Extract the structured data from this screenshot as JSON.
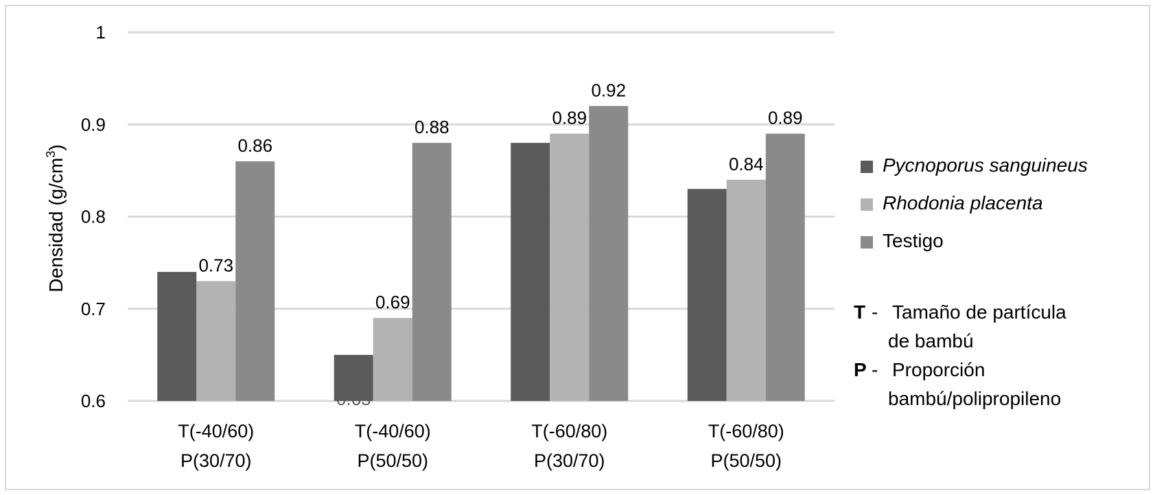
{
  "chart_data": {
    "type": "bar",
    "categories": [
      [
        "T(-40/60)",
        "P(30/70)"
      ],
      [
        "T(-40/60)",
        "P(50/50)"
      ],
      [
        "T(-60/80)",
        "P(30/70)"
      ],
      [
        "T(-60/80)",
        "P(50/50)"
      ]
    ],
    "series": [
      {
        "name": "Pycnoporus sanguineus",
        "values": [
          0.74,
          0.65,
          0.88,
          0.83
        ],
        "color": "#5b5b5b",
        "label_color": "#5b5b5b",
        "label_position": "inside"
      },
      {
        "name": "Rhodonia placenta",
        "values": [
          0.73,
          0.69,
          0.89,
          0.84
        ],
        "color": "#b3b3b3",
        "label_color": "#000000",
        "label_position": "above"
      },
      {
        "name": "Testigo",
        "values": [
          0.86,
          0.88,
          0.92,
          0.89
        ],
        "color": "#8a8a8a",
        "label_color": "#000000",
        "label_position": "above"
      }
    ],
    "ylabel": "Densidad (g/cm",
    "ylabel_sup": "3",
    "ylabel_end": ")",
    "ylim": [
      0.6,
      1
    ],
    "yticks": [
      0.6,
      0.7,
      0.8,
      0.9,
      1
    ],
    "ytick_labels": [
      "0.6",
      "0.7",
      "0.8",
      "0.9",
      "1"
    ],
    "grid": true,
    "legend_position": "right",
    "gridline_color": "#d9d9d9"
  },
  "notes": [
    {
      "key": "T",
      "sep": "-",
      "lines": [
        "Tamaño de partícula",
        "de bambú"
      ]
    },
    {
      "key": "P",
      "sep": "-",
      "lines": [
        "Proporción",
        "bambú/polipropileno"
      ]
    }
  ]
}
